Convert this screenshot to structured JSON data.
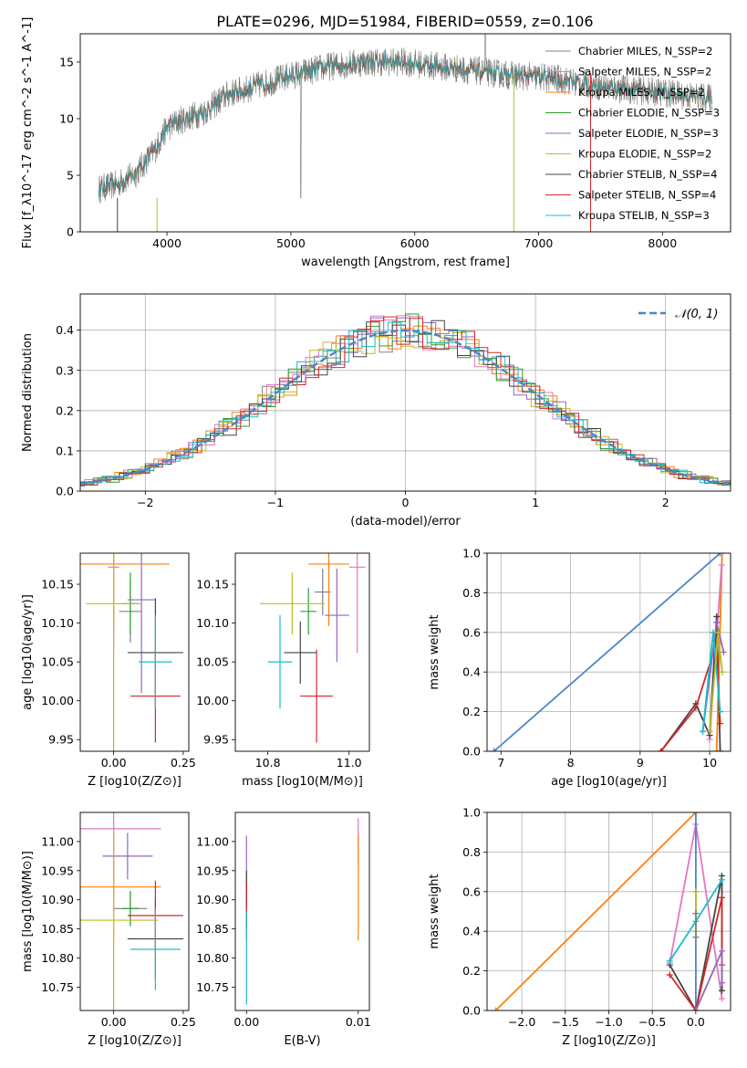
{
  "figure_title": "PLATE=0296, MJD=51984, FIBERID=0559, z=0.106",
  "colors": {
    "Chabrier MILES": "#808080",
    "Salpeter MILES": "#e377c2",
    "Kroupa MILES": "#ff7f0e",
    "Chabrier ELODIE": "#2ca02c",
    "Salpeter ELODIE": "#9467bd",
    "Kroupa ELODIE": "#bcbd22",
    "Chabrier STELIB": "#444444",
    "Salpeter STELIB": "#d62728",
    "Kroupa STELIB": "#17becf",
    "normal": "#4a86c8"
  },
  "chart_data": [
    {
      "id": "spectrum",
      "type": "line",
      "xlabel": "wavelength [Angstrom, rest frame]",
      "ylabel": "Flux [f_λ10^-17 erg cm^-2 s^-1 A^-1]",
      "xlim": [
        3300,
        8550
      ],
      "ylim": [
        0,
        17.5
      ],
      "xticks": [
        4000,
        5000,
        6000,
        7000,
        8000
      ],
      "yticks": [
        0,
        5,
        10,
        15
      ],
      "grid": false,
      "legend_position": "upper-right",
      "legend": [
        {
          "label": "Chabrier MILES, N_SSP=2",
          "model": "Chabrier MILES"
        },
        {
          "label": "Salpeter MILES, N_SSP=2",
          "model": "Salpeter MILES"
        },
        {
          "label": "Kroupa MILES, N_SSP=2",
          "model": "Kroupa MILES"
        },
        {
          "label": "Chabrier ELODIE, N_SSP=3",
          "model": "Chabrier ELODIE"
        },
        {
          "label": "Salpeter ELODIE, N_SSP=3",
          "model": "Salpeter ELODIE"
        },
        {
          "label": "Kroupa ELODIE, N_SSP=2",
          "model": "Kroupa ELODIE"
        },
        {
          "label": "Chabrier STELIB, N_SSP=4",
          "model": "Chabrier STELIB"
        },
        {
          "label": "Salpeter STELIB, N_SSP=4",
          "model": "Salpeter STELIB"
        },
        {
          "label": "Kroupa STELIB, N_SSP=3",
          "model": "Kroupa STELIB"
        }
      ],
      "continuum": [
        [
          3450,
          3.8
        ],
        [
          3600,
          4.2
        ],
        [
          3750,
          5.2
        ],
        [
          3900,
          7.2
        ],
        [
          4000,
          9.2
        ],
        [
          4100,
          9.8
        ],
        [
          4300,
          10.6
        ],
        [
          4500,
          12.2
        ],
        [
          4700,
          12.8
        ],
        [
          5000,
          13.8
        ],
        [
          5300,
          14.6
        ],
        [
          5600,
          15.0
        ],
        [
          5900,
          15.0
        ],
        [
          6200,
          14.6
        ],
        [
          6500,
          14.2
        ],
        [
          6800,
          13.8
        ],
        [
          7100,
          13.6
        ],
        [
          7400,
          13.0
        ],
        [
          7700,
          12.6
        ],
        [
          8000,
          12.3
        ],
        [
          8400,
          11.8
        ]
      ]
    },
    {
      "id": "residuals",
      "type": "step",
      "xlabel": "(data-model)/error",
      "ylabel": "Normed distribution",
      "xlim": [
        -2.5,
        2.5
      ],
      "ylim": [
        0,
        0.49
      ],
      "xticks": [
        -2,
        -1,
        0,
        1,
        2
      ],
      "yticks": [
        0.0,
        0.1,
        0.2,
        0.3,
        0.4
      ],
      "grid": true,
      "legend_position": "upper-right",
      "curve_label": "𝒩(0, 1)"
    },
    {
      "id": "age_vs_Z",
      "type": "errorbar",
      "xlabel": "Z [log10(Z/Z⊙)]",
      "ylabel": "age  [log10(age/yr)]",
      "xlim": [
        -0.12,
        0.27
      ],
      "ylim": [
        9.935,
        10.19
      ],
      "xticks": [
        0.0,
        0.25
      ],
      "yticks": [
        9.95,
        10.0,
        10.05,
        10.1,
        10.15
      ],
      "points": [
        {
          "model": "Chabrier MILES",
          "x": 0.06,
          "y": 10.115,
          "xerr": 0.04,
          "yerr": 0.04
        },
        {
          "model": "Salpeter MILES",
          "x": 0.0,
          "y": 10.172,
          "xerr": 0.02,
          "yerr": 0.11
        },
        {
          "model": "Kroupa MILES",
          "x": 0.0,
          "y": 10.176,
          "xerr": 0.2,
          "yerr": 0.08
        },
        {
          "model": "Chabrier ELODIE",
          "x": 0.06,
          "y": 10.125,
          "xerr": 0.03,
          "yerr": 0.04
        },
        {
          "model": "Salpeter ELODIE",
          "x": 0.1,
          "y": 10.13,
          "xerr": 0.05,
          "yerr": 0.12
        },
        {
          "model": "Kroupa ELODIE",
          "x": 0.0,
          "y": 10.125,
          "xerr": 0.1,
          "yerr": 0.19
        },
        {
          "model": "Chabrier STELIB",
          "x": 0.15,
          "y": 10.062,
          "xerr": 0.1,
          "yerr": 0.07
        },
        {
          "model": "Salpeter STELIB",
          "x": 0.15,
          "y": 10.006,
          "xerr": 0.09,
          "yerr": 0.06
        },
        {
          "model": "Kroupa STELIB",
          "x": 0.15,
          "y": 10.05,
          "xerr": 0.06,
          "yerr": 0.06
        }
      ]
    },
    {
      "id": "age_vs_mass",
      "type": "errorbar",
      "xlabel": "mass [log10(M/M⊙)]",
      "ylabel": "",
      "xlim": [
        10.72,
        11.05
      ],
      "ylim": [
        9.935,
        10.19
      ],
      "xticks": [
        10.8,
        11.0
      ],
      "yticks": [
        9.95,
        10.0,
        10.05,
        10.1,
        10.15
      ],
      "points": [
        {
          "model": "Chabrier MILES",
          "x": 10.935,
          "y": 10.14,
          "xerr": 0.02,
          "yerr": 0.03
        },
        {
          "model": "Salpeter MILES",
          "x": 11.02,
          "y": 10.172,
          "xerr": 0.02,
          "yerr": 0.11
        },
        {
          "model": "Kroupa MILES",
          "x": 10.95,
          "y": 10.176,
          "xerr": 0.05,
          "yerr": 0.08
        },
        {
          "model": "Chabrier ELODIE",
          "x": 10.9,
          "y": 10.115,
          "xerr": 0.02,
          "yerr": 0.03
        },
        {
          "model": "Salpeter ELODIE",
          "x": 10.97,
          "y": 10.11,
          "xerr": 0.03,
          "yerr": 0.06
        },
        {
          "model": "Kroupa ELODIE",
          "x": 10.86,
          "y": 10.125,
          "xerr": 0.08,
          "yerr": 0.04
        },
        {
          "model": "Chabrier STELIB",
          "x": 10.88,
          "y": 10.062,
          "xerr": 0.04,
          "yerr": 0.04
        },
        {
          "model": "Salpeter STELIB",
          "x": 10.92,
          "y": 10.006,
          "xerr": 0.04,
          "yerr": 0.06
        },
        {
          "model": "Kroupa STELIB",
          "x": 10.83,
          "y": 10.05,
          "xerr": 0.03,
          "yerr": 0.06
        }
      ]
    },
    {
      "id": "weight_vs_age",
      "type": "line",
      "xlabel": "age  [log10(age/yr)]",
      "ylabel": "mass weight",
      "xlim": [
        6.8,
        10.3
      ],
      "ylim": [
        0,
        1.0
      ],
      "xticks": [
        7,
        8,
        9,
        10
      ],
      "yticks": [
        0.0,
        0.2,
        0.4,
        0.6,
        0.8,
        1.0
      ],
      "grid": true,
      "series": [
        {
          "model": "normal",
          "points": [
            [
              6.9,
              0.0
            ],
            [
              10.15,
              1.0
            ]
          ]
        },
        {
          "model": "Kroupa MILES",
          "points": [
            [
              10.1,
              0.0
            ],
            [
              10.18,
              1.0
            ]
          ]
        },
        {
          "model": "Salpeter MILES",
          "points": [
            [
              10.0,
              0.06
            ],
            [
              10.17,
              0.94
            ]
          ]
        },
        {
          "model": "Chabrier STELIB",
          "points": [
            [
              9.3,
              0.0
            ],
            [
              9.8,
              0.24
            ],
            [
              10.0,
              0.08
            ],
            [
              10.1,
              0.68
            ],
            [
              10.15,
              0.0
            ]
          ]
        },
        {
          "model": "Salpeter STELIB",
          "points": [
            [
              9.3,
              0.0
            ],
            [
              9.8,
              0.22
            ],
            [
              10.1,
              0.55
            ],
            [
              10.15,
              0.14
            ]
          ]
        },
        {
          "model": "Salpeter ELODIE",
          "points": [
            [
              9.9,
              0.1
            ],
            [
              10.1,
              0.65
            ],
            [
              10.2,
              0.5
            ]
          ]
        },
        {
          "model": "Kroupa STELIB",
          "points": [
            [
              9.9,
              0.1
            ],
            [
              10.05,
              0.6
            ],
            [
              10.15,
              0.2
            ]
          ]
        },
        {
          "model": "Kroupa ELODIE",
          "points": [
            [
              10.0,
              0.1
            ],
            [
              10.12,
              0.6
            ],
            [
              10.18,
              0.4
            ]
          ]
        }
      ]
    },
    {
      "id": "mass_vs_Z",
      "type": "errorbar",
      "xlabel": "Z [log10(Z/Z⊙)]",
      "ylabel": "mass [log10(M/M⊙)]",
      "xlim": [
        -0.12,
        0.27
      ],
      "ylim": [
        10.71,
        11.05
      ],
      "xticks": [
        0.0,
        0.25
      ],
      "yticks": [
        10.75,
        10.8,
        10.85,
        10.9,
        10.95,
        11.0
      ],
      "points": [
        {
          "model": "Chabrier MILES",
          "x": 0.06,
          "y": 10.885,
          "xerr": 0.06,
          "yerr": 0.03
        },
        {
          "model": "Salpeter MILES",
          "x": 0.0,
          "y": 11.022,
          "xerr": 0.17,
          "yerr": 0.11
        },
        {
          "model": "Kroupa MILES",
          "x": 0.0,
          "y": 10.922,
          "xerr": 0.17,
          "yerr": 0.09
        },
        {
          "model": "Chabrier ELODIE",
          "x": 0.06,
          "y": 10.885,
          "xerr": 0.03,
          "yerr": 0.03
        },
        {
          "model": "Salpeter ELODIE",
          "x": 0.05,
          "y": 10.975,
          "xerr": 0.09,
          "yerr": 0.04
        },
        {
          "model": "Kroupa ELODIE",
          "x": 0.0,
          "y": 10.865,
          "xerr": 0.16,
          "yerr": 0.16
        },
        {
          "model": "Chabrier STELIB",
          "x": 0.15,
          "y": 10.833,
          "xerr": 0.1,
          "yerr": 0.07
        },
        {
          "model": "Salpeter STELIB",
          "x": 0.15,
          "y": 10.873,
          "xerr": 0.1,
          "yerr": 0.06
        },
        {
          "model": "Kroupa STELIB",
          "x": 0.15,
          "y": 10.815,
          "xerr": 0.09,
          "yerr": 0.07
        }
      ]
    },
    {
      "id": "mass_vs_EBV",
      "type": "errorbar",
      "xlabel": "E(B-V)",
      "ylabel": "",
      "xlim": [
        -0.001,
        0.011
      ],
      "ylim": [
        10.71,
        11.05
      ],
      "xticks": [
        0.0,
        0.01
      ],
      "yticks": [
        10.75,
        10.8,
        10.85,
        10.9,
        10.95,
        11.0
      ],
      "points": [
        {
          "model": "Salpeter MILES",
          "x": 0.01,
          "y": 11.0,
          "xerr": 0.0,
          "yerr": 0.04
        },
        {
          "model": "Kroupa MILES",
          "x": 0.01,
          "y": 10.92,
          "xerr": 0.0,
          "yerr": 0.09
        },
        {
          "model": "Salpeter ELODIE",
          "x": 0.0,
          "y": 10.95,
          "xerr": 0.0,
          "yerr": 0.06
        },
        {
          "model": "Chabrier STELIB",
          "x": 0.0,
          "y": 10.9,
          "xerr": 0.0,
          "yerr": 0.05
        },
        {
          "model": "Salpeter STELIB",
          "x": 0.0,
          "y": 10.88,
          "xerr": 0.0,
          "yerr": 0.05
        },
        {
          "model": "Kroupa STELIB",
          "x": 0.0,
          "y": 10.8,
          "xerr": 0.0,
          "yerr": 0.08
        }
      ]
    },
    {
      "id": "weight_vs_Z",
      "type": "line",
      "xlabel": "Z [log10(Z/Z⊙)]",
      "ylabel": "mass weight",
      "xlim": [
        -2.4,
        0.4
      ],
      "ylim": [
        0,
        1.0
      ],
      "xticks": [
        -2.0,
        -1.5,
        -1.0,
        -0.5,
        0.0
      ],
      "yticks": [
        0.0,
        0.2,
        0.4,
        0.6,
        0.8,
        1.0
      ],
      "grid": true,
      "series": [
        {
          "model": "Kroupa MILES",
          "points": [
            [
              -2.3,
              0.0
            ],
            [
              0.0,
              1.0
            ]
          ]
        },
        {
          "model": "Salpeter MILES",
          "points": [
            [
              -0.3,
              0.24
            ],
            [
              0.0,
              0.94
            ],
            [
              0.3,
              0.06
            ]
          ]
        },
        {
          "model": "normal",
          "points": [
            [
              0.0,
              1.0
            ],
            [
              0.0,
              0.0
            ]
          ]
        },
        {
          "model": "Kroupa ELODIE",
          "points": [
            [
              0.0,
              0.6
            ],
            [
              0.0,
              0.4
            ]
          ]
        },
        {
          "model": "Chabrier STELIB",
          "points": [
            [
              -0.3,
              0.23
            ],
            [
              0.0,
              0.0
            ],
            [
              0.3,
              0.68
            ],
            [
              0.3,
              0.1
            ]
          ]
        },
        {
          "model": "Salpeter STELIB",
          "points": [
            [
              -0.3,
              0.18
            ],
            [
              0.0,
              0.0
            ],
            [
              0.3,
              0.57
            ],
            [
              0.3,
              0.23
            ]
          ]
        },
        {
          "model": "Kroupa STELIB",
          "points": [
            [
              -0.3,
              0.25
            ],
            [
              0.0,
              0.45
            ],
            [
              0.3,
              0.66
            ]
          ]
        },
        {
          "model": "Salpeter ELODIE",
          "points": [
            [
              0.0,
              0.0
            ],
            [
              0.3,
              0.3
            ],
            [
              0.3,
              0.14
            ]
          ]
        },
        {
          "model": "Chabrier MILES",
          "points": [
            [
              0.0,
              0.49
            ],
            [
              0.0,
              0.37
            ]
          ]
        }
      ]
    }
  ]
}
